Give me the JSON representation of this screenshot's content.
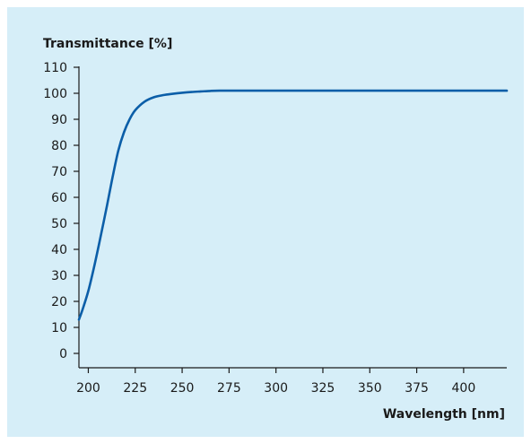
{
  "chart_data": {
    "type": "line",
    "title": "",
    "ylabel": "Transmittance [%]",
    "xlabel": "Wavelength [nm]",
    "xlim": [
      195,
      423
    ],
    "ylim": [
      0,
      110
    ],
    "grid": false,
    "x_ticks": [
      200,
      225,
      250,
      275,
      300,
      325,
      350,
      375,
      400
    ],
    "y_ticks": [
      0,
      10,
      20,
      30,
      40,
      50,
      60,
      70,
      80,
      90,
      100,
      110
    ],
    "series": [
      {
        "color": "#0b5ea8",
        "x": [
          195,
          197,
          200,
          203,
          206,
          210,
          213,
          216,
          219,
          222,
          225,
          230,
          235,
          240,
          245,
          250,
          255,
          260,
          265,
          270,
          280,
          300,
          325,
          350,
          375,
          400,
          423
        ],
        "y": [
          13,
          17,
          24,
          33,
          43,
          57,
          68,
          78,
          85,
          90,
          93.5,
          96.8,
          98.5,
          99.3,
          99.8,
          100.2,
          100.5,
          100.7,
          100.9,
          101,
          101,
          101,
          101,
          101,
          101,
          101,
          101
        ]
      }
    ],
    "colors": {
      "background": "#d6eef8",
      "axis": "#1a1a1a",
      "line": "#0b5ea8"
    }
  }
}
